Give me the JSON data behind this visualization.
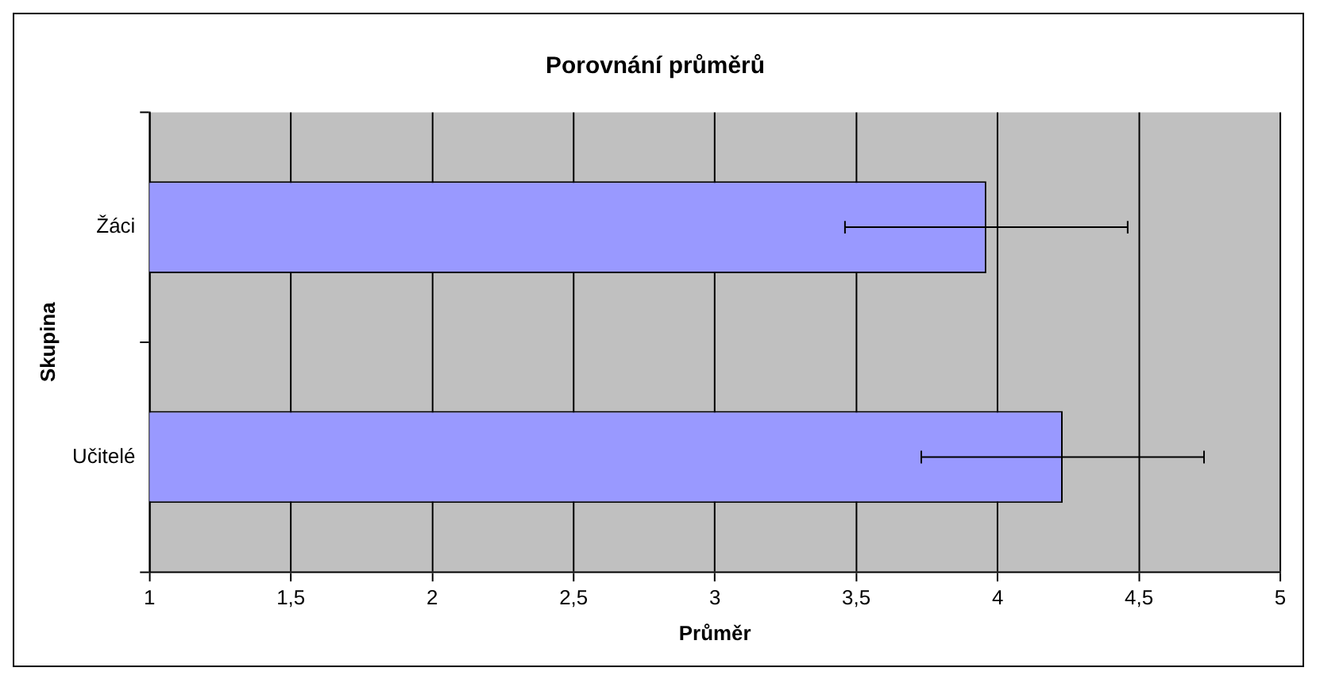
{
  "chart_data": {
    "type": "bar",
    "title": "Porovnání průměrů",
    "xlabel": "Průměr",
    "ylabel": "Skupina",
    "orientation": "horizontal",
    "categories": [
      "Žáci",
      "Učitelé"
    ],
    "values": [
      3.96,
      4.23
    ],
    "errors": [
      [
        3.46,
        4.46
      ],
      [
        3.73,
        4.73
      ]
    ],
    "color": "#9999ff",
    "xlim": [
      1,
      5
    ],
    "xticks": [
      1,
      {
        "value": 1.5,
        "label": "1,5"
      },
      2,
      {
        "value": 2.5,
        "label": "2,5"
      },
      3,
      {
        "value": 3.5,
        "label": "3,5"
      },
      4,
      {
        "value": 4.5,
        "label": "4,5"
      },
      5
    ],
    "grid": "x",
    "legend": false
  }
}
